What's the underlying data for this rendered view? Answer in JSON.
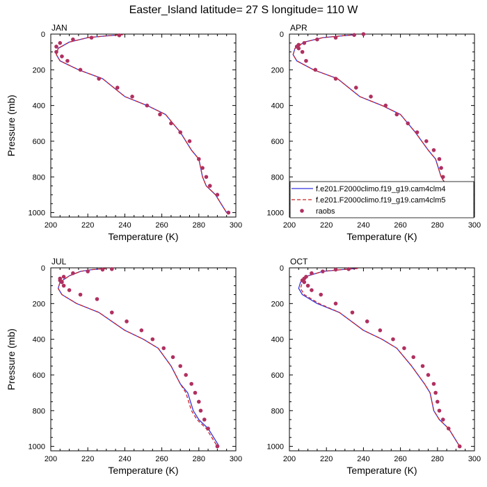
{
  "figure": {
    "title": "Easter_Island  latitude= 27 S longitude= 110 W"
  },
  "legend": {
    "entries": [
      {
        "label": "f.e201.F2000climo.f19_g19.cam4clm4",
        "style": "solid",
        "color": "#3333dd"
      },
      {
        "label": "f.e201.F2000climo.f19_g19.cam4clm5",
        "style": "dashed",
        "color": "#cc2222"
      },
      {
        "label": "raobs",
        "style": "marker",
        "color": "#b03060"
      }
    ]
  },
  "chart_data": [
    {
      "type": "line",
      "panel": "JAN",
      "xlabel": "Temperature (K)",
      "ylabel": "Pressure (mb)",
      "xlim": [
        200,
        300
      ],
      "ylim": [
        1025,
        0
      ],
      "xticks": [
        200,
        220,
        240,
        260,
        280,
        300
      ],
      "yticks": [
        0,
        200,
        400,
        600,
        800,
        1000
      ],
      "series": [
        {
          "name": "f.e201.F2000climo.f19_g19.cam4clm4",
          "style": "solid",
          "color": "#3333dd",
          "x": [
            239,
            230,
            220,
            210,
            204,
            203,
            205,
            215,
            228,
            240,
            252,
            262,
            270,
            276,
            280,
            282,
            284,
            289,
            295
          ],
          "y": [
            3,
            10,
            20,
            45,
            80,
            115,
            150,
            200,
            250,
            350,
            400,
            450,
            550,
            650,
            700,
            800,
            850,
            900,
            1000
          ]
        },
        {
          "name": "f.e201.F2000climo.f19_g19.cam4clm5",
          "style": "dashed",
          "color": "#cc2222",
          "x": [
            239,
            230,
            220,
            210,
            204,
            203,
            205,
            215,
            228,
            240,
            252,
            262,
            270,
            276,
            280,
            282,
            284,
            289,
            295
          ],
          "y": [
            3,
            10,
            20,
            45,
            80,
            115,
            150,
            200,
            250,
            350,
            400,
            450,
            550,
            650,
            700,
            800,
            850,
            900,
            1000
          ]
        },
        {
          "name": "raobs",
          "style": "marker",
          "color": "#b03060",
          "x": [
            237,
            222,
            212,
            205,
            203,
            203,
            206,
            209,
            216,
            226,
            236,
            244,
            252,
            259,
            265,
            270,
            275,
            280,
            282,
            284,
            286,
            290,
            296
          ],
          "y": [
            7,
            20,
            30,
            50,
            70,
            100,
            125,
            150,
            200,
            250,
            300,
            350,
            400,
            450,
            500,
            550,
            600,
            700,
            750,
            800,
            850,
            900,
            1000
          ]
        }
      ]
    },
    {
      "type": "line",
      "panel": "APR",
      "xlabel": "Temperature (K)",
      "ylabel": "",
      "xlim": [
        200,
        300
      ],
      "ylim": [
        1025,
        0
      ],
      "xticks": [
        200,
        220,
        240,
        260,
        280,
        300
      ],
      "yticks": [
        0,
        200,
        400,
        600,
        800,
        1000
      ],
      "series": [
        {
          "name": "f.e201.F2000climo.f19_g19.cam4clm4",
          "style": "solid",
          "color": "#3333dd",
          "x": [
            236,
            228,
            218,
            208,
            203,
            202,
            204,
            213,
            226,
            238,
            250,
            260,
            268,
            275,
            279,
            282,
            285,
            289,
            295
          ],
          "y": [
            3,
            10,
            20,
            45,
            80,
            115,
            150,
            200,
            250,
            350,
            400,
            450,
            550,
            650,
            700,
            800,
            850,
            900,
            1000
          ]
        },
        {
          "name": "f.e201.F2000climo.f19_g19.cam4clm5",
          "style": "dashed",
          "color": "#cc2222",
          "x": [
            236,
            228,
            218,
            208,
            203,
            202,
            204,
            213,
            226,
            238,
            250,
            260,
            268,
            275,
            279,
            282,
            285,
            289,
            295
          ],
          "y": [
            3,
            10,
            20,
            45,
            80,
            115,
            150,
            200,
            250,
            350,
            400,
            450,
            550,
            650,
            700,
            800,
            850,
            900,
            1000
          ]
        },
        {
          "name": "raobs",
          "style": "marker",
          "color": "#b03060",
          "x": [
            240,
            235,
            225,
            215,
            208,
            205,
            204,
            205,
            207,
            209,
            214,
            225,
            236,
            244,
            252,
            258,
            264,
            269,
            274,
            278,
            281,
            282,
            283,
            284,
            295
          ],
          "y": [
            0,
            5,
            20,
            30,
            50,
            60,
            70,
            80,
            100,
            150,
            200,
            250,
            300,
            350,
            400,
            450,
            500,
            550,
            600,
            650,
            700,
            750,
            800,
            850,
            1000
          ]
        }
      ]
    },
    {
      "type": "line",
      "panel": "JUL",
      "xlabel": "Temperature (K)",
      "ylabel": "Pressure (mb)",
      "xlim": [
        200,
        300
      ],
      "ylim": [
        1025,
        0
      ],
      "xticks": [
        200,
        220,
        240,
        260,
        280,
        300
      ],
      "yticks": [
        0,
        200,
        400,
        600,
        800,
        1000
      ],
      "series": [
        {
          "name": "f.e201.F2000climo.f19_g19.cam4clm4",
          "style": "solid",
          "color": "#3333dd",
          "x": [
            230,
            222,
            216,
            210,
            205,
            204,
            206,
            214,
            226,
            240,
            250,
            258,
            265,
            270,
            274,
            277,
            280,
            285,
            291
          ],
          "y": [
            3,
            10,
            20,
            45,
            80,
            115,
            150,
            200,
            250,
            350,
            400,
            450,
            550,
            650,
            700,
            800,
            850,
            900,
            1000
          ]
        },
        {
          "name": "f.e201.F2000climo.f19_g19.cam4clm5",
          "style": "dashed",
          "color": "#cc2222",
          "x": [
            230,
            222,
            216,
            210,
            205,
            204,
            206,
            214,
            226,
            240,
            250,
            258,
            265,
            270,
            273,
            276,
            279,
            284,
            290
          ],
          "y": [
            3,
            10,
            20,
            45,
            80,
            115,
            150,
            200,
            250,
            350,
            400,
            450,
            550,
            650,
            700,
            800,
            850,
            900,
            1000
          ]
        },
        {
          "name": "raobs",
          "style": "marker",
          "color": "#b03060",
          "x": [
            233,
            228,
            220,
            212,
            207,
            205,
            205,
            206,
            207,
            210,
            216,
            225,
            233,
            241,
            249,
            255,
            261,
            266,
            270,
            273,
            276,
            278,
            280,
            281,
            283,
            285,
            290
          ],
          "y": [
            7,
            10,
            20,
            30,
            50,
            60,
            70,
            80,
            100,
            125,
            150,
            175,
            250,
            300,
            350,
            400,
            450,
            500,
            550,
            600,
            650,
            700,
            750,
            800,
            850,
            900,
            1000
          ]
        }
      ]
    },
    {
      "type": "line",
      "panel": "OCT",
      "xlabel": "Temperature (K)",
      "ylabel": "",
      "xlim": [
        200,
        300
      ],
      "ylim": [
        1025,
        0
      ],
      "xticks": [
        200,
        220,
        240,
        260,
        280,
        300
      ],
      "yticks": [
        0,
        200,
        400,
        600,
        800,
        1000
      ],
      "series": [
        {
          "name": "f.e201.F2000climo.f19_g19.cam4clm4",
          "style": "solid",
          "color": "#3333dd",
          "x": [
            237,
            228,
            218,
            210,
            206,
            205,
            207,
            215,
            227,
            240,
            250,
            258,
            266,
            273,
            276,
            278,
            281,
            286,
            292
          ],
          "y": [
            3,
            10,
            20,
            45,
            80,
            115,
            150,
            200,
            250,
            350,
            400,
            450,
            550,
            650,
            700,
            800,
            850,
            900,
            1000
          ]
        },
        {
          "name": "f.e201.F2000climo.f19_g19.cam4clm5",
          "style": "dashed",
          "color": "#cc2222",
          "x": [
            237,
            228,
            218,
            210,
            207,
            206,
            208,
            216,
            227,
            240,
            250,
            258,
            266,
            273,
            276,
            278,
            281,
            286,
            292
          ],
          "y": [
            3,
            10,
            20,
            45,
            80,
            115,
            150,
            200,
            250,
            350,
            400,
            450,
            550,
            650,
            700,
            800,
            850,
            900,
            1000
          ]
        },
        {
          "name": "raobs",
          "style": "marker",
          "color": "#b03060",
          "x": [
            232,
            225,
            218,
            212,
            209,
            208,
            207,
            208,
            210,
            212,
            217,
            225,
            234,
            242,
            249,
            256,
            262,
            267,
            272,
            275,
            278,
            279,
            280,
            281,
            283,
            286,
            292
          ],
          "y": [
            7,
            10,
            20,
            30,
            50,
            60,
            70,
            80,
            100,
            125,
            150,
            200,
            250,
            300,
            350,
            400,
            450,
            500,
            550,
            600,
            650,
            700,
            750,
            800,
            850,
            900,
            1000
          ]
        }
      ]
    }
  ]
}
